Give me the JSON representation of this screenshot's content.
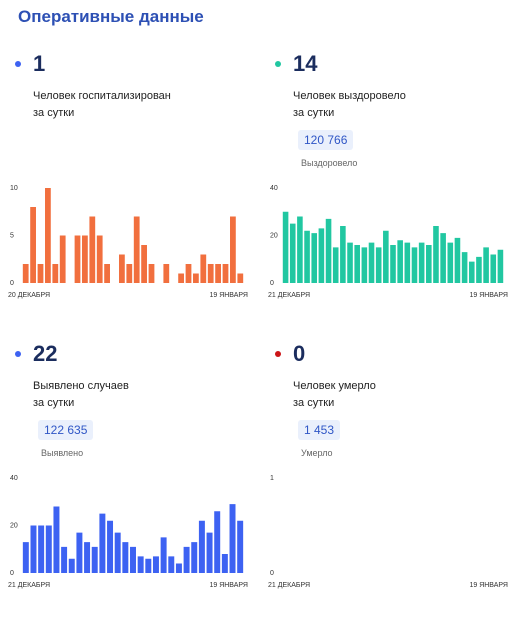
{
  "title": "Оперативные данные",
  "colors": {
    "title": "#2d50b4",
    "orange": "#f16f3e",
    "teal": "#21c7a1",
    "blue": "#3d62f2",
    "red": "#cc1518"
  },
  "cards": [
    {
      "value": "1",
      "label_line1": "Человек госпитализирован",
      "label_line2": "за сутки",
      "total": "",
      "total_label": "",
      "dot_color": "#3d62f2"
    },
    {
      "value": "14",
      "label_line1": "Человек выздоровело",
      "label_line2": "за сутки",
      "total": "120 766",
      "total_label": "Выздоровело",
      "dot_color": "#21c7a1"
    },
    {
      "value": "22",
      "label_line1": "Выявлено случаев",
      "label_line2": "за сутки",
      "total": "122 635",
      "total_label": "Выявлено",
      "dot_color": "#3d62f2"
    },
    {
      "value": "0",
      "label_line1": "Человек умерло",
      "label_line2": "за сутки",
      "total": "1 453",
      "total_label": "Умерло",
      "dot_color": "#cc1518"
    }
  ],
  "chart_data": [
    {
      "type": "bar",
      "color": "#f16f3e",
      "ylim": [
        0,
        10
      ],
      "yticks": [
        "0",
        "5",
        "10"
      ],
      "x_start_label": "20 ДЕКАБРЯ",
      "x_end_label": "19 ЯНВАРЯ",
      "values": [
        2,
        8,
        2,
        10,
        2,
        5,
        0,
        5,
        5,
        7,
        5,
        2,
        0,
        3,
        2,
        7,
        4,
        2,
        0,
        2,
        0,
        1,
        2,
        1,
        3,
        2,
        2,
        2,
        7,
        1
      ]
    },
    {
      "type": "bar",
      "color": "#21c7a1",
      "ylim": [
        0,
        40
      ],
      "yticks": [
        "0",
        "20",
        "40"
      ],
      "x_start_label": "21 ДЕКАБРЯ",
      "x_end_label": "19 ЯНВАРЯ",
      "values": [
        30,
        25,
        28,
        22,
        21,
        23,
        27,
        15,
        24,
        17,
        16,
        15,
        17,
        15,
        22,
        16,
        18,
        17,
        15,
        17,
        16,
        24,
        21,
        17,
        19,
        13,
        9,
        11,
        15,
        12,
        14
      ]
    },
    {
      "type": "bar",
      "color": "#3d62f2",
      "ylim": [
        0,
        40
      ],
      "yticks": [
        "0",
        "20",
        "40"
      ],
      "x_start_label": "21 ДЕКАБРЯ",
      "x_end_label": "19 ЯНВАРЯ",
      "values": [
        13,
        20,
        20,
        20,
        28,
        11,
        6,
        17,
        13,
        11,
        25,
        22,
        17,
        13,
        11,
        7,
        6,
        7,
        15,
        7,
        4,
        11,
        13,
        22,
        17,
        26,
        8,
        29,
        22
      ]
    },
    {
      "type": "bar",
      "color": "#cc1518",
      "ylim": [
        0,
        1
      ],
      "yticks": [
        "0",
        "1"
      ],
      "x_start_label": "21 ДЕКАБРЯ",
      "x_end_label": "19 ЯНВАРЯ",
      "values": []
    }
  ]
}
